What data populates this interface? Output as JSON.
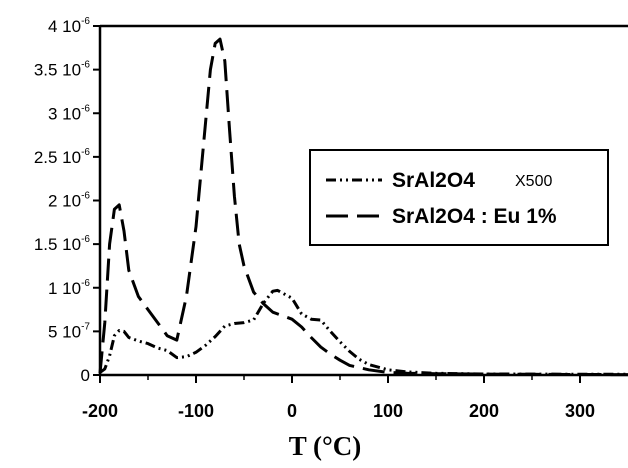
{
  "chart_data": {
    "type": "line",
    "title": "",
    "xlabel": "T (°C)",
    "ylabel": "",
    "xlim": [
      -200,
      350
    ],
    "ylim": [
      0,
      4e-06
    ],
    "x_ticks": [
      -200,
      -100,
      0,
      100,
      200,
      300
    ],
    "y_ticks": [
      0,
      5e-07,
      1e-06,
      1.5e-06,
      2e-06,
      2.5e-06,
      3e-06,
      3.5e-06,
      4e-06
    ],
    "y_tick_labels": [
      {
        "mant": "0",
        "exp": ""
      },
      {
        "mant": "5 10",
        "exp": "-7"
      },
      {
        "mant": "1 10",
        "exp": "-6"
      },
      {
        "mant": "1.5 10",
        "exp": "-6"
      },
      {
        "mant": "2 10",
        "exp": "-6"
      },
      {
        "mant": "2.5 10",
        "exp": "-6"
      },
      {
        "mant": "3 10",
        "exp": "-6"
      },
      {
        "mant": "3.5 10",
        "exp": "-6"
      },
      {
        "mant": "4 10",
        "exp": "-6"
      }
    ],
    "grid": false,
    "legend_position": "right",
    "series": [
      {
        "name": "SrAl2O4",
        "name_suffix": "X500",
        "style": "dash-dot-dot",
        "x": [
          -200,
          -195,
          -190,
          -185,
          -180,
          -175,
          -170,
          -160,
          -150,
          -140,
          -130,
          -120,
          -110,
          -100,
          -90,
          -80,
          -70,
          -60,
          -50,
          -40,
          -30,
          -20,
          -15,
          -10,
          0,
          10,
          20,
          30,
          40,
          50,
          60,
          70,
          80,
          100,
          120,
          150,
          200,
          250,
          300,
          350
        ],
        "y": [
          3e-08,
          7e-08,
          2.2e-07,
          4.5e-07,
          5.1e-07,
          5e-07,
          4.3e-07,
          3.9e-07,
          3.6e-07,
          3.1e-07,
          2.8e-07,
          2e-07,
          2.1e-07,
          2.6e-07,
          3.4e-07,
          4.4e-07,
          5.6e-07,
          5.9e-07,
          6e-07,
          6.3e-07,
          8.2e-07,
          9.6e-07,
          9.7e-07,
          9.4e-07,
          8.8e-07,
          7e-07,
          6.4e-07,
          6.3e-07,
          5e-07,
          3.8e-07,
          2.7e-07,
          1.8e-07,
          1.2e-07,
          6e-08,
          3.5e-08,
          2e-08,
          1.2e-08,
          1e-08,
          8e-09,
          8e-09
        ]
      },
      {
        "name": "SrAl2O4 : Eu 1%",
        "name_suffix": "",
        "style": "long-dash",
        "x": [
          -200,
          -195,
          -190,
          -185,
          -180,
          -175,
          -170,
          -160,
          -150,
          -140,
          -130,
          -120,
          -110,
          -100,
          -95,
          -90,
          -85,
          -80,
          -75,
          -70,
          -65,
          -60,
          -55,
          -50,
          -40,
          -30,
          -20,
          -10,
          0,
          10,
          20,
          30,
          40,
          50,
          60,
          80,
          100,
          120,
          150,
          200,
          250,
          300,
          350
        ],
        "y": [
          2e-08,
          6e-07,
          1.5e-06,
          1.9e-06,
          1.95e-06,
          1.65e-06,
          1.2e-06,
          9e-07,
          7.5e-07,
          6e-07,
          4.5e-07,
          4e-07,
          9e-07,
          1.7e-06,
          2.3e-06,
          2.9e-06,
          3.5e-06,
          3.8e-06,
          3.85e-06,
          3.6e-06,
          2.8e-06,
          2.05e-06,
          1.5e-06,
          1.25e-06,
          9.5e-07,
          8.2e-07,
          7.2e-07,
          6.8e-07,
          6.4e-07,
          5.5e-07,
          4.3e-07,
          3.2e-07,
          2.4e-07,
          1.7e-07,
          1.1e-07,
          6e-08,
          3e-08,
          2e-08,
          1.5e-08,
          1e-08,
          8e-09,
          6e-09,
          5e-09
        ]
      }
    ]
  }
}
